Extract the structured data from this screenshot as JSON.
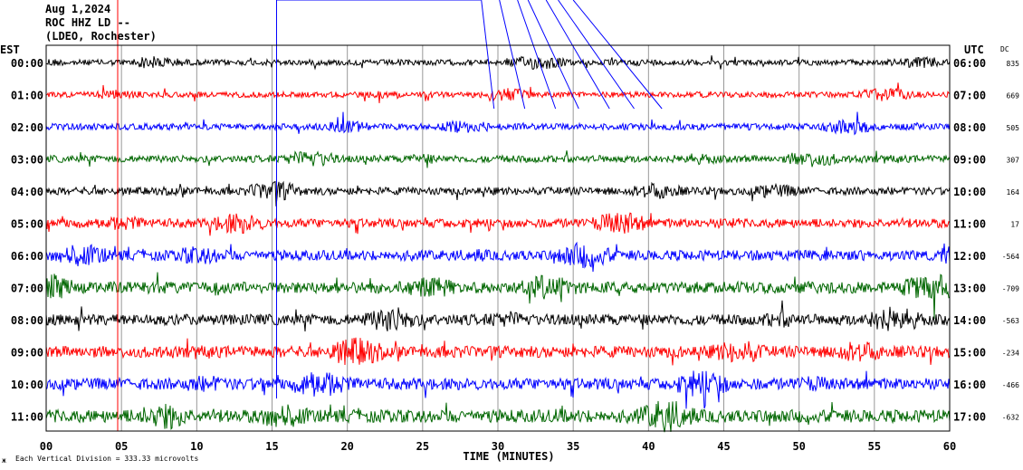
{
  "header": {
    "date": "Aug 1,2024",
    "station": "ROC HHZ LD --",
    "network": "(LDEO, Rochester)"
  },
  "chart_data": {
    "type": "line",
    "title": "ROC HHZ LD -- helicorder, Aug 1,2024",
    "xlabel": "TIME (MINUTES)",
    "left_axis_label": "EST",
    "right_axis_label": "UTC",
    "dc_label": "DC",
    "xlim": [
      0,
      60
    ],
    "x_ticks": [
      "00",
      "05",
      "10",
      "15",
      "20",
      "25",
      "30",
      "35",
      "40",
      "45",
      "50",
      "55",
      "60"
    ],
    "scale_note": "Each Vertical Division =  333.33 microvolts",
    "scale_icon": "ж",
    "trace_colors": [
      "#000000",
      "#ff0000",
      "#0000ff",
      "#006600"
    ],
    "rows": [
      {
        "est": "00:00",
        "utc": "06:00",
        "dc": "835",
        "amplitude": 0.45
      },
      {
        "est": "01:00",
        "utc": "07:00",
        "dc": "669",
        "amplitude": 0.45
      },
      {
        "est": "02:00",
        "utc": "08:00",
        "dc": "505",
        "amplitude": 0.5
      },
      {
        "est": "03:00",
        "utc": "09:00",
        "dc": "307",
        "amplitude": 0.55
      },
      {
        "est": "04:00",
        "utc": "10:00",
        "dc": "164",
        "amplitude": 0.6
      },
      {
        "est": "05:00",
        "utc": "11:00",
        "dc": "17",
        "amplitude": 0.7
      },
      {
        "est": "06:00",
        "utc": "12:00",
        "dc": "-564",
        "amplitude": 0.8
      },
      {
        "est": "07:00",
        "utc": "13:00",
        "dc": "-709",
        "amplitude": 0.9
      },
      {
        "est": "08:00",
        "utc": "14:00",
        "dc": "-563",
        "amplitude": 0.85
      },
      {
        "est": "09:00",
        "utc": "15:00",
        "dc": "-234",
        "amplitude": 0.9
      },
      {
        "est": "10:00",
        "utc": "16:00",
        "dc": "-466",
        "amplitude": 0.9
      },
      {
        "est": "11:00",
        "utc": "17:00",
        "dc": "-632",
        "amplitude": 1.0
      }
    ],
    "event_markers_minutes": [
      15.3,
      28.9,
      30.1,
      31.3,
      32.0,
      33.2,
      34.0,
      35.0
    ]
  }
}
